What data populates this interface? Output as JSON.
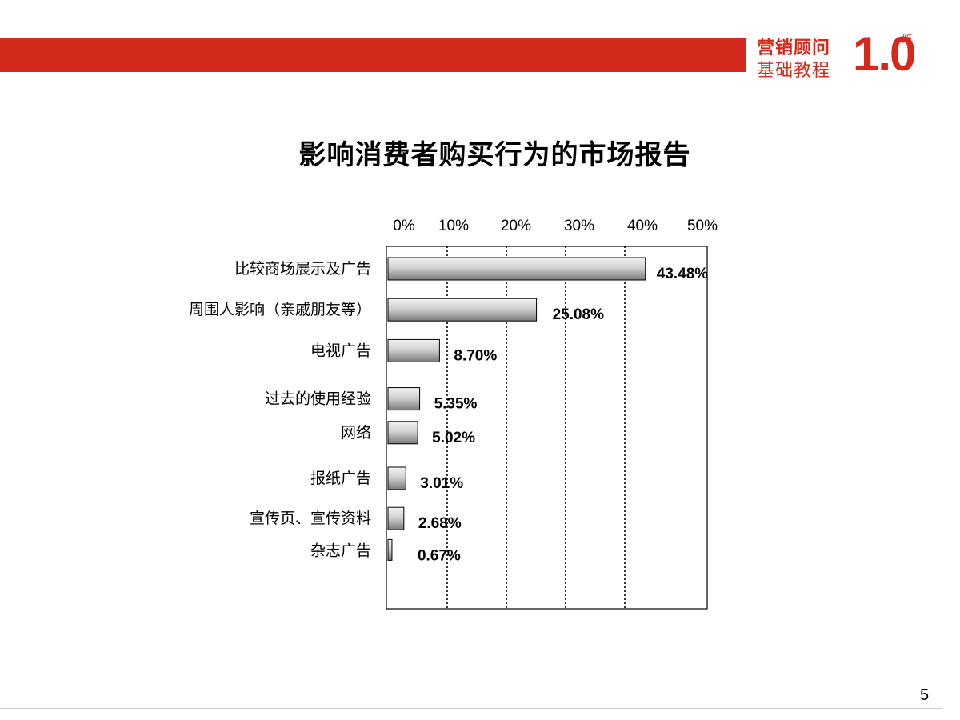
{
  "brand": {
    "line1": "营销顾问",
    "line2": "基础教程",
    "version": "1.0",
    "edition": "版",
    "color": "#d42a1c"
  },
  "page_number": "5",
  "chart_data": {
    "type": "bar",
    "orientation": "horizontal",
    "title": "影响消费者购买行为的市场报告",
    "categories": [
      "比较商场展示及广告",
      "周围人影响（亲戚朋友等）",
      "电视广告",
      "过去的使用经验",
      "网络",
      "报纸广告",
      "宣传页、宣传资料",
      "杂志广告"
    ],
    "values": [
      43.48,
      25.08,
      8.7,
      5.35,
      5.02,
      3.01,
      2.68,
      0.67
    ],
    "value_labels": [
      "43.48%",
      "25.08%",
      "8.70%",
      "5.35%",
      "5.02%",
      "3.01%",
      "2.68%",
      "0.67%"
    ],
    "x_ticks": [
      "0%",
      "10%",
      "20%",
      "30%",
      "40%",
      "50%"
    ],
    "xlim": [
      0,
      50
    ],
    "xaxis_position": "top",
    "grid": "dotted vertical",
    "legend": "none"
  }
}
